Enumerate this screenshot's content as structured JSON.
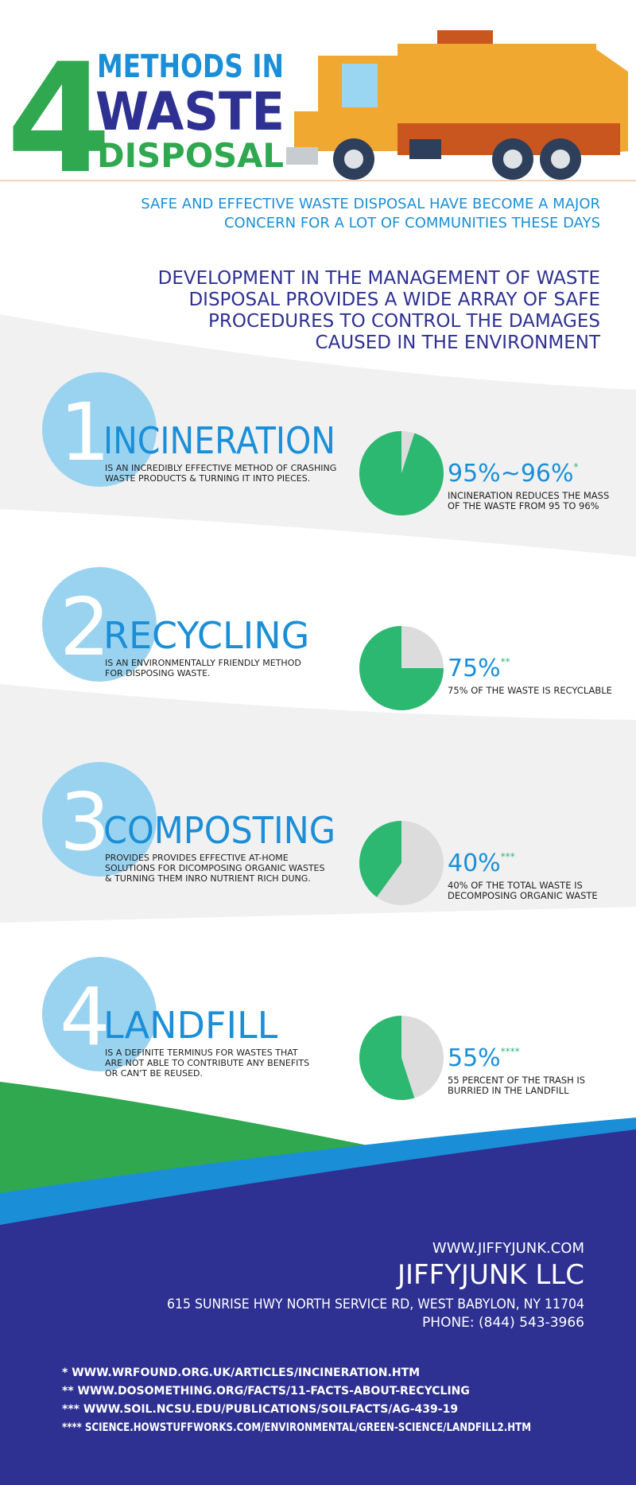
{
  "header": {
    "number": "4",
    "line1": "METHODS IN",
    "line2": "WASTE",
    "line3": "DISPOSAL"
  },
  "intro": {
    "lines": [
      "SAFE AND EFFECTIVE WASTE DISPOSAL HAVE BECOME A MAJOR",
      "CONCERN FOR A LOT OF COMMUNITIES THESE DAYS"
    ]
  },
  "development": {
    "lines": [
      "DEVELOPMENT IN THE MANAGEMENT OF WASTE",
      "DISPOSAL PROVIDES A WIDE ARRAY OF SAFE",
      "PROCEDURES TO CONTROL THE DAMAGES",
      "CAUSED IN THE ENVIRONMENT"
    ]
  },
  "methods": [
    {
      "number": "1",
      "title": "INCINERATION",
      "description": [
        "IS AN INCREDIBLY EFFECTIVE METHOD OF CRASHING",
        "WASTE PRODUCTS & TURNING IT INTO PIECES."
      ],
      "percent": {
        "value": 95,
        "label": "95%~96%"
      },
      "note": "*",
      "caption": [
        "INCINERATION REDUCES THE MASS",
        "OF THE WASTE FROM 95 TO 96%"
      ]
    },
    {
      "number": "2",
      "title": "RECYCLING",
      "description": [
        "IS AN ENVIRONMENTALLY FRIENDLY METHOD",
        "FOR DISPOSING WASTE."
      ],
      "percent": {
        "value": 75,
        "label": "75%"
      },
      "note": "**",
      "caption": [
        "75% OF THE WASTE IS RECYCLABLE"
      ]
    },
    {
      "number": "3",
      "title": "COMPOSTING",
      "description": [
        "PROVIDES PROVIDES EFFECTIVE AT-HOME",
        "SOLUTIONS FOR DICOMPOSING ORGANIC WASTES",
        "& TURNING THEM INRO NUTRIENT RICH DUNG."
      ],
      "percent": {
        "value": 40,
        "label": "40%"
      },
      "note": "***",
      "caption": [
        "40% OF THE TOTAL WASTE IS",
        "DECOMPOSING ORGANIC WASTE"
      ]
    },
    {
      "number": "4",
      "title": "LANDFILL",
      "description": [
        "IS A DEFINITE TERMINUS FOR WASTES THAT",
        "ARE NOT ABLE TO CONTRIBUTE ANY BENEFITS",
        "OR CAN'T BE REUSED."
      ],
      "percent": {
        "value": 55,
        "label": "55%"
      },
      "note": "****",
      "caption": [
        "55 PERCENT OF THE TRASH IS",
        "BURRIED IN THE LANDFILL"
      ]
    }
  ],
  "footer": {
    "website": "WWW.JIFFYJUNK.COM",
    "company": "JIFFYJUNK LLC",
    "address": "615 SUNRISE HWY NORTH SERVICE RD, WEST BABYLON, NY 11704",
    "phone": "PHONE: (844) 543-3966",
    "sources": [
      "* WWW.WRFOUND.ORG.UK/ARTICLES/INCINERATION.HTM",
      "** WWW.DOSOMETHING.ORG/FACTS/11-FACTS-ABOUT-RECYCLING",
      "*** WWW.SOIL.NCSU.EDU/PUBLICATIONS/SOILFACTS/AG-439-19",
      "**** SCIENCE.HOWSTUFFWORKS.COM/ENVIRONMENTAL/GREEN-SCIENCE/LANDFILL2.HTM"
    ]
  }
}
